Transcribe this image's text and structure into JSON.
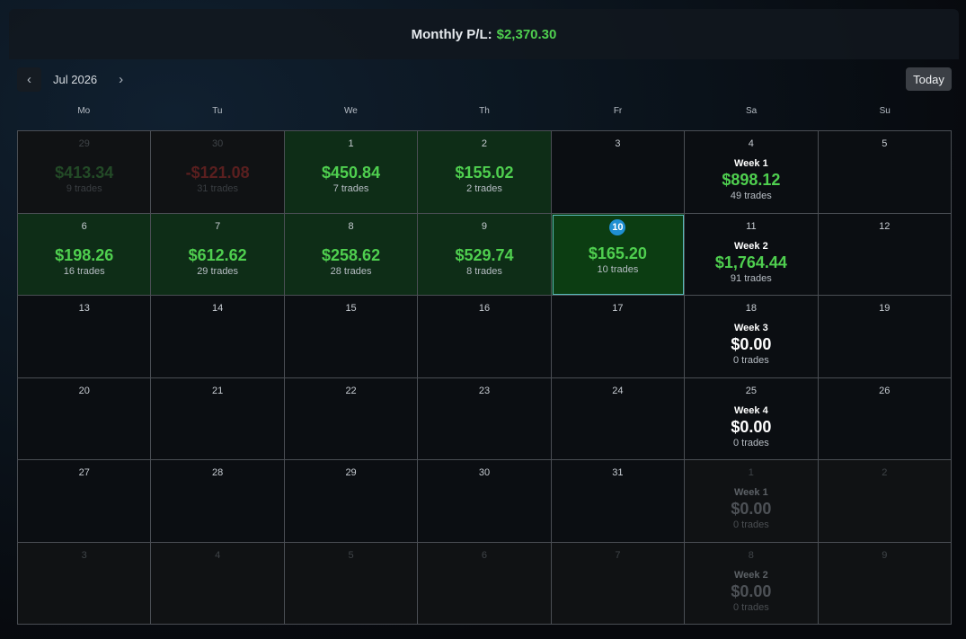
{
  "header": {
    "monthly_pl_label": "Monthly P/L:",
    "monthly_pl_value": "$2,370.30"
  },
  "nav": {
    "prev_icon": "‹",
    "month_label": "Jul 2026",
    "next_icon": "›",
    "today_label": "Today"
  },
  "weekdays": [
    "Mo",
    "Tu",
    "We",
    "Th",
    "Fr",
    "Sa",
    "Su"
  ],
  "colors": {
    "profit": "#4fcf4f",
    "loss": "#b03030",
    "selected_badge": "#1f8fd2",
    "selected_border": "#58b8b8"
  },
  "rows": [
    [
      {
        "day": "29",
        "pnl": "$413.34",
        "trades": "9 trades",
        "state": "outside-win"
      },
      {
        "day": "30",
        "pnl": "-$121.08",
        "trades": "31 trades",
        "state": "outside-loss"
      },
      {
        "day": "1",
        "pnl": "$450.84",
        "trades": "7 trades",
        "state": "win"
      },
      {
        "day": "2",
        "pnl": "$155.02",
        "trades": "2 trades",
        "state": "win"
      },
      {
        "day": "3",
        "state": "empty"
      },
      {
        "day": "4",
        "week": "Week 1",
        "pnl": "$898.12",
        "trades": "49 trades",
        "state": "week"
      },
      {
        "day": "5",
        "state": "empty"
      }
    ],
    [
      {
        "day": "6",
        "pnl": "$198.26",
        "trades": "16 trades",
        "state": "win"
      },
      {
        "day": "7",
        "pnl": "$612.62",
        "trades": "29 trades",
        "state": "win"
      },
      {
        "day": "8",
        "pnl": "$258.62",
        "trades": "28 trades",
        "state": "win"
      },
      {
        "day": "9",
        "pnl": "$529.74",
        "trades": "8 trades",
        "state": "win"
      },
      {
        "day": "10",
        "pnl": "$165.20",
        "trades": "10 trades",
        "state": "selected"
      },
      {
        "day": "11",
        "week": "Week 2",
        "pnl": "$1,764.44",
        "trades": "91 trades",
        "state": "week"
      },
      {
        "day": "12",
        "state": "empty"
      }
    ],
    [
      {
        "day": "13",
        "state": "empty"
      },
      {
        "day": "14",
        "state": "empty"
      },
      {
        "day": "15",
        "state": "empty"
      },
      {
        "day": "16",
        "state": "empty"
      },
      {
        "day": "17",
        "state": "empty"
      },
      {
        "day": "18",
        "week": "Week 3",
        "pnl": "$0.00",
        "trades": "0 trades",
        "state": "week-zero"
      },
      {
        "day": "19",
        "state": "empty"
      }
    ],
    [
      {
        "day": "20",
        "state": "empty"
      },
      {
        "day": "21",
        "state": "empty"
      },
      {
        "day": "22",
        "state": "empty"
      },
      {
        "day": "23",
        "state": "empty"
      },
      {
        "day": "24",
        "state": "empty"
      },
      {
        "day": "25",
        "week": "Week 4",
        "pnl": "$0.00",
        "trades": "0 trades",
        "state": "week-zero"
      },
      {
        "day": "26",
        "state": "empty"
      }
    ],
    [
      {
        "day": "27",
        "state": "empty"
      },
      {
        "day": "28",
        "state": "empty"
      },
      {
        "day": "29",
        "state": "empty"
      },
      {
        "day": "30",
        "state": "empty"
      },
      {
        "day": "31",
        "state": "empty"
      },
      {
        "day": "1",
        "week": "Week 1",
        "pnl": "$0.00",
        "trades": "0 trades",
        "state": "outside-week"
      },
      {
        "day": "2",
        "state": "outside"
      }
    ],
    [
      {
        "day": "3",
        "state": "outside"
      },
      {
        "day": "4",
        "state": "outside"
      },
      {
        "day": "5",
        "state": "outside"
      },
      {
        "day": "6",
        "state": "outside"
      },
      {
        "day": "7",
        "state": "outside"
      },
      {
        "day": "8",
        "week": "Week 2",
        "pnl": "$0.00",
        "trades": "0 trades",
        "state": "outside-week"
      },
      {
        "day": "9",
        "state": "outside"
      }
    ]
  ]
}
